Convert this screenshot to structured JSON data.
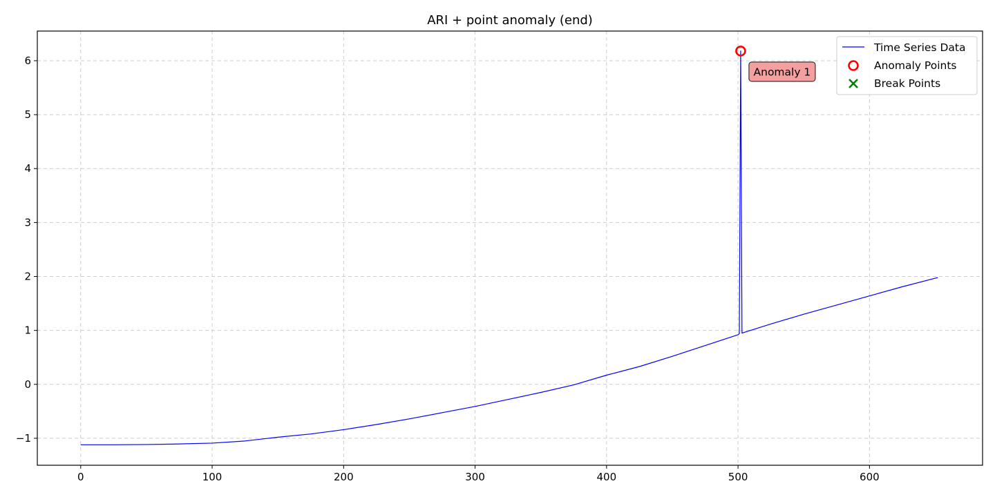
{
  "chart_data": {
    "type": "line",
    "title": "ARI + point anomaly (end)",
    "xlabel": "",
    "ylabel": "",
    "xlim": [
      -33,
      686
    ],
    "ylim": [
      -1.5,
      6.55
    ],
    "xticks": [
      0,
      100,
      200,
      300,
      400,
      500,
      600
    ],
    "xtick_labels": [
      "0",
      "100",
      "200",
      "300",
      "400",
      "500",
      "600"
    ],
    "yticks": [
      -1,
      0,
      1,
      2,
      3,
      4,
      5,
      6
    ],
    "ytick_labels": [
      "−1",
      "0",
      "1",
      "2",
      "3",
      "4",
      "5",
      "6"
    ],
    "grid": true,
    "legend_position": "top-right",
    "series": [
      {
        "name": "Time Series Data",
        "color": "#0000ff",
        "x": [
          0,
          25,
          50,
          75,
          100,
          125,
          150,
          175,
          200,
          225,
          250,
          275,
          300,
          325,
          350,
          375,
          400,
          425,
          450,
          475,
          500,
          501,
          502,
          503,
          525,
          550,
          575,
          600,
          625,
          652
        ],
        "y": [
          -1.12,
          -1.12,
          -1.115,
          -1.105,
          -1.09,
          -1.05,
          -0.98,
          -0.92,
          -0.84,
          -0.745,
          -0.64,
          -0.525,
          -0.41,
          -0.28,
          -0.15,
          -0.01,
          0.17,
          0.33,
          0.52,
          0.72,
          0.92,
          0.94,
          6.18,
          0.95,
          1.12,
          1.3,
          1.47,
          1.64,
          1.81,
          1.98
        ]
      },
      {
        "name": "Anomaly Points",
        "color": "#ff0000",
        "marker": "circle",
        "x": [
          502
        ],
        "y": [
          6.18
        ]
      },
      {
        "name": "Break Points",
        "color": "#008000",
        "marker": "x",
        "x": [],
        "y": []
      }
    ],
    "annotations": [
      {
        "text": "Anomaly 1",
        "x": 502,
        "y": 6.18,
        "background": "#f4a0a0"
      }
    ]
  }
}
